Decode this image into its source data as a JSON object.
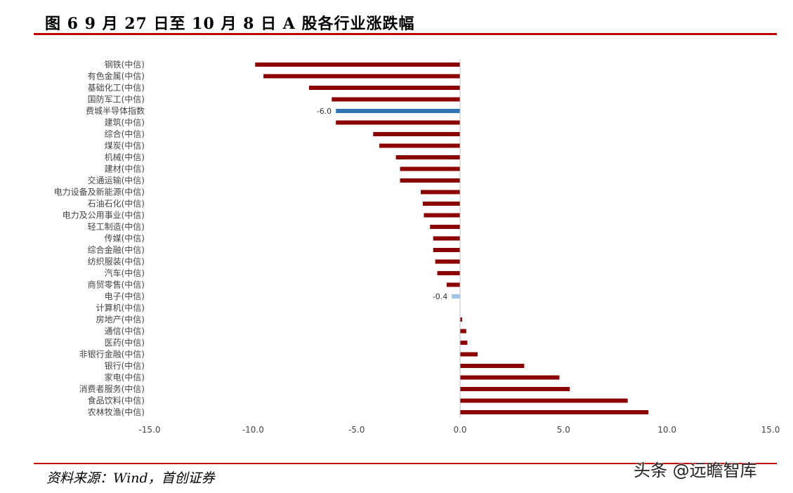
{
  "header": {
    "title": "图 6 9 月 27 日至 10 月 8 日 A 股各行业涨跌幅"
  },
  "footer": {
    "source": "资料来源：Wind，首创证券",
    "watermark": "头条 @远瞻智库"
  },
  "colors": {
    "bar": "#8b0000",
    "highlight": "#2e75b6",
    "highlight_light": "#9dc3e6",
    "rule": "#c00000"
  },
  "chart_data": {
    "type": "bar",
    "orientation": "horizontal",
    "title": "",
    "xlabel": "",
    "ylabel": "",
    "xlim": [
      -15,
      15
    ],
    "ticks": [
      "-15.0",
      "-10.0",
      "-5.0",
      "0.0",
      "5.0",
      "10.0",
      "15.0"
    ],
    "grid": false,
    "legend": "none",
    "categories": [
      "钢铁(中信)",
      "有色金属(中信)",
      "基础化工(中信)",
      "国防军工(中信)",
      "费城半导体指数",
      "建筑(中信)",
      "综合(中信)",
      "煤炭(中信)",
      "机械(中信)",
      "建材(中信)",
      "交通运输(中信)",
      "电力设备及新能源(中信)",
      "石油石化(中信)",
      "电力及公用事业(中信)",
      "轻工制造(中信)",
      "传媒(中信)",
      "综合金融(中信)",
      "纺织服装(中信)",
      "汽车(中信)",
      "商贸零售(中信)",
      "电子(中信)",
      "计算机(中信)",
      "房地产(中信)",
      "通信(中信)",
      "医药(中信)",
      "非银行金融(中信)",
      "银行(中信)",
      "家电(中信)",
      "消费者服务(中信)",
      "食品饮料(中信)",
      "农林牧渔(中信)"
    ],
    "values": [
      -9.9,
      -9.5,
      -7.3,
      -6.2,
      -6.0,
      -6.0,
      -4.2,
      -3.9,
      -3.1,
      -2.9,
      -2.9,
      -1.9,
      -1.8,
      -1.75,
      -1.45,
      -1.3,
      -1.3,
      -1.2,
      -1.1,
      -0.65,
      -0.4,
      0.0,
      0.1,
      0.3,
      0.35,
      0.85,
      3.1,
      4.8,
      5.3,
      8.1,
      9.1
    ],
    "highlight": [
      {
        "index": 4,
        "label": "-6.0",
        "color": "#2e75b6"
      },
      {
        "index": 20,
        "label": "-0.4",
        "color": "#9dc3e6"
      }
    ]
  }
}
